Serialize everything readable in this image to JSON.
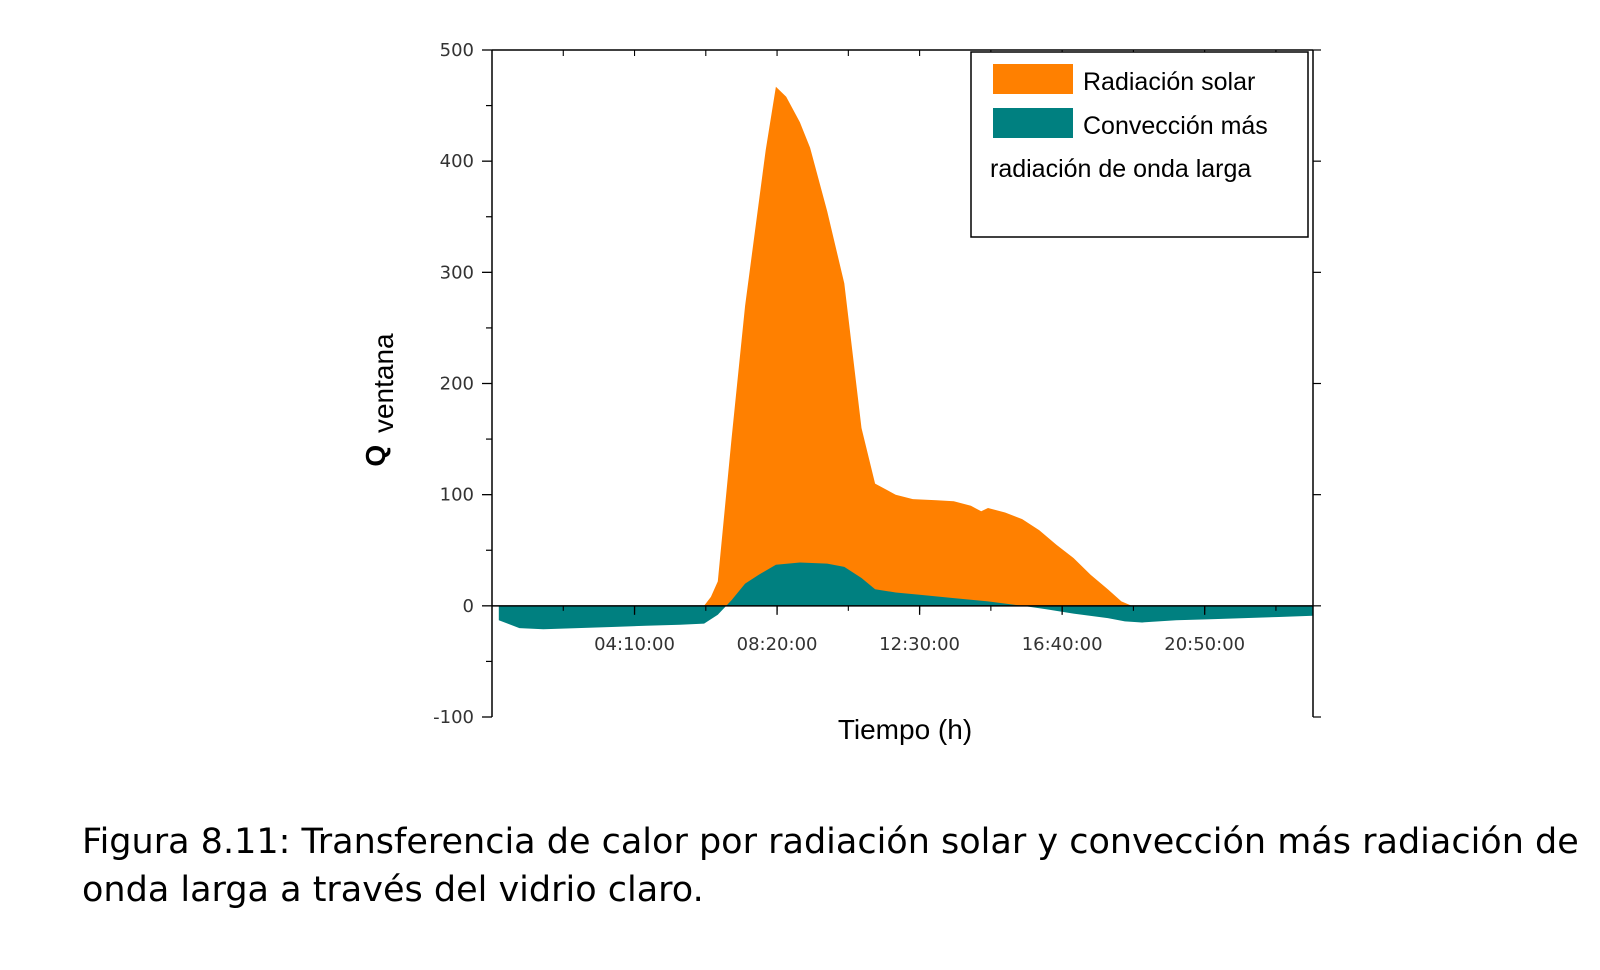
{
  "chart_data": {
    "type": "area",
    "xlabel": "Tiempo (h)",
    "ylabel_main": "Q",
    "ylabel_sub": "ventana",
    "x_unit": "hours",
    "xlim": [
      0,
      24
    ],
    "ylim": [
      -100,
      500
    ],
    "y_ticks": [
      500,
      400,
      300,
      200,
      100,
      0,
      -100
    ],
    "x_ticks": [
      {
        "value": 4.1667,
        "label": "04:10:00"
      },
      {
        "value": 8.3333,
        "label": "08:20:00"
      },
      {
        "value": 12.5,
        "label": "12:30:00"
      },
      {
        "value": 16.6667,
        "label": "16:40:00"
      },
      {
        "value": 20.8333,
        "label": "20:50:00"
      }
    ],
    "grid": false,
    "legend_position": "top-right",
    "series": [
      {
        "name": "Radiación solar",
        "color": "#FF8000",
        "points": [
          [
            6.2,
            0
          ],
          [
            6.4,
            8
          ],
          [
            6.6,
            22
          ],
          [
            7.0,
            150
          ],
          [
            7.4,
            270
          ],
          [
            7.7,
            340
          ],
          [
            8.0,
            410
          ],
          [
            8.3,
            467
          ],
          [
            8.6,
            458
          ],
          [
            9.0,
            435
          ],
          [
            9.3,
            412
          ],
          [
            9.8,
            355
          ],
          [
            10.3,
            290
          ],
          [
            10.8,
            160
          ],
          [
            11.2,
            110
          ],
          [
            11.8,
            100
          ],
          [
            12.3,
            96
          ],
          [
            13.0,
            95
          ],
          [
            13.5,
            94
          ],
          [
            14.0,
            90
          ],
          [
            14.3,
            85
          ],
          [
            14.5,
            88
          ],
          [
            15.0,
            84
          ],
          [
            15.5,
            78
          ],
          [
            16.0,
            68
          ],
          [
            16.5,
            55
          ],
          [
            17.0,
            43
          ],
          [
            17.5,
            28
          ],
          [
            18.0,
            15
          ],
          [
            18.4,
            4
          ],
          [
            18.7,
            0
          ]
        ]
      },
      {
        "name": "Convección más radiación de onda larga",
        "color": "#008080",
        "points": [
          [
            0.2,
            -13
          ],
          [
            0.8,
            -20
          ],
          [
            1.5,
            -21
          ],
          [
            2.5,
            -20
          ],
          [
            3.5,
            -19
          ],
          [
            4.5,
            -18
          ],
          [
            5.5,
            -17
          ],
          [
            6.2,
            -16
          ],
          [
            6.6,
            -8
          ],
          [
            7.0,
            5
          ],
          [
            7.4,
            20
          ],
          [
            7.8,
            28
          ],
          [
            8.3,
            37
          ],
          [
            9.0,
            39
          ],
          [
            9.8,
            38
          ],
          [
            10.3,
            35
          ],
          [
            10.8,
            25
          ],
          [
            11.2,
            15
          ],
          [
            11.8,
            12
          ],
          [
            12.5,
            10
          ],
          [
            13.5,
            7
          ],
          [
            14.5,
            4
          ],
          [
            15.5,
            0
          ],
          [
            16.2,
            -3
          ],
          [
            17.0,
            -7
          ],
          [
            18.0,
            -11
          ],
          [
            18.5,
            -14
          ],
          [
            19.0,
            -15
          ],
          [
            20.0,
            -13
          ],
          [
            21.0,
            -12
          ],
          [
            22.0,
            -11
          ],
          [
            23.0,
            -10
          ],
          [
            24.0,
            -9
          ]
        ]
      }
    ],
    "legend": [
      {
        "label": "Radiación solar",
        "color": "#FF8000"
      },
      {
        "label": "Convección más",
        "color": "#008080"
      },
      {
        "label": "radiación de onda larga",
        "color": null
      }
    ]
  },
  "caption": {
    "text": "Figura 8.11: Transferencia de calor por radiación solar y convección más radiación de onda larga a través del vidrio claro."
  }
}
